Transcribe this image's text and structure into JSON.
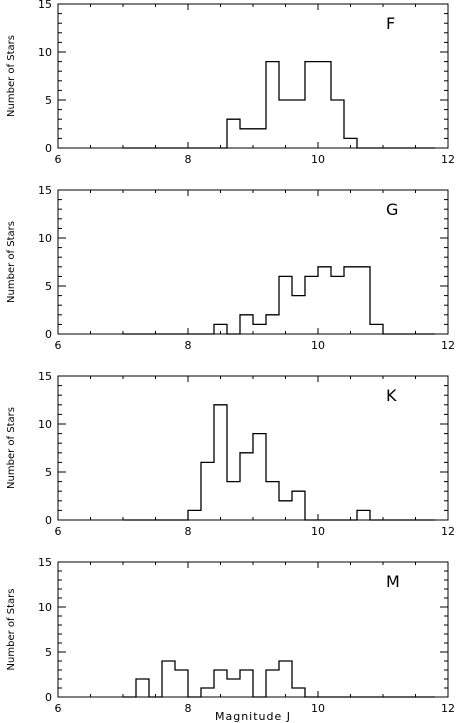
{
  "chart_data": [
    {
      "type": "histogram",
      "label": "F",
      "ylabel": "Number of Stars",
      "xlim": [
        6,
        12
      ],
      "ylim": [
        0,
        15
      ],
      "xticks": [
        "6",
        "8",
        "10",
        "12"
      ],
      "yticks": [
        "0",
        "5",
        "10",
        "15"
      ],
      "bin_edges": [
        7.0,
        7.2,
        7.4,
        7.6,
        7.8,
        8.0,
        8.2,
        8.4,
        8.6,
        8.8,
        9.0,
        9.2,
        9.4,
        9.6,
        9.8,
        10.0,
        10.2,
        10.4,
        10.6,
        10.8,
        11.0,
        11.2,
        11.4,
        11.6,
        11.8
      ],
      "counts": [
        0,
        0,
        0,
        0,
        0,
        0,
        0,
        0,
        3,
        2,
        2,
        9,
        5,
        5,
        9,
        9,
        5,
        1,
        0,
        0,
        0,
        0,
        0,
        0
      ]
    },
    {
      "type": "histogram",
      "label": "G",
      "ylabel": "Number of Stars",
      "xlim": [
        6,
        12
      ],
      "ylim": [
        0,
        15
      ],
      "xticks": [
        "6",
        "8",
        "10",
        "12"
      ],
      "yticks": [
        "0",
        "5",
        "10",
        "15"
      ],
      "bin_edges": [
        7.0,
        7.2,
        7.4,
        7.6,
        7.8,
        8.0,
        8.2,
        8.4,
        8.6,
        8.8,
        9.0,
        9.2,
        9.4,
        9.6,
        9.8,
        10.0,
        10.2,
        10.4,
        10.6,
        10.8,
        11.0,
        11.2,
        11.4,
        11.6,
        11.8
      ],
      "counts": [
        0,
        0,
        0,
        0,
        0,
        0,
        0,
        1,
        0,
        2,
        1,
        2,
        6,
        4,
        6,
        7,
        6,
        7,
        7,
        1,
        0,
        0,
        0,
        0
      ]
    },
    {
      "type": "histogram",
      "label": "K",
      "ylabel": "Number of Stars",
      "xlim": [
        6,
        12
      ],
      "ylim": [
        0,
        15
      ],
      "xticks": [
        "6",
        "8",
        "10",
        "12"
      ],
      "yticks": [
        "0",
        "5",
        "10",
        "15"
      ],
      "bin_edges": [
        7.0,
        7.2,
        7.4,
        7.6,
        7.8,
        8.0,
        8.2,
        8.4,
        8.6,
        8.8,
        9.0,
        9.2,
        9.4,
        9.6,
        9.8,
        10.0,
        10.2,
        10.4,
        10.6,
        10.8,
        11.0,
        11.2,
        11.4,
        11.6,
        11.8
      ],
      "counts": [
        0,
        0,
        0,
        0,
        0,
        1,
        6,
        12,
        4,
        7,
        9,
        4,
        2,
        3,
        0,
        0,
        0,
        0,
        1,
        0,
        0,
        0,
        0,
        0
      ]
    },
    {
      "type": "histogram",
      "label": "M",
      "ylabel": "Number of Stars",
      "xlabel": "Magnitude J",
      "xlim": [
        6,
        12
      ],
      "ylim": [
        0,
        15
      ],
      "xticks": [
        "6",
        "8",
        "10",
        "12"
      ],
      "yticks": [
        "0",
        "5",
        "10",
        "15"
      ],
      "bin_edges": [
        7.0,
        7.2,
        7.4,
        7.6,
        7.8,
        8.0,
        8.2,
        8.4,
        8.6,
        8.8,
        9.0,
        9.2,
        9.4,
        9.6,
        9.8,
        10.0,
        10.2,
        10.4,
        10.6,
        10.8,
        11.0,
        11.2,
        11.4,
        11.6,
        11.8
      ],
      "counts": [
        0,
        2,
        0,
        4,
        3,
        0,
        1,
        3,
        2,
        3,
        0,
        3,
        4,
        1,
        0,
        0,
        0,
        0,
        0,
        0,
        0,
        0,
        0,
        0
      ]
    }
  ]
}
